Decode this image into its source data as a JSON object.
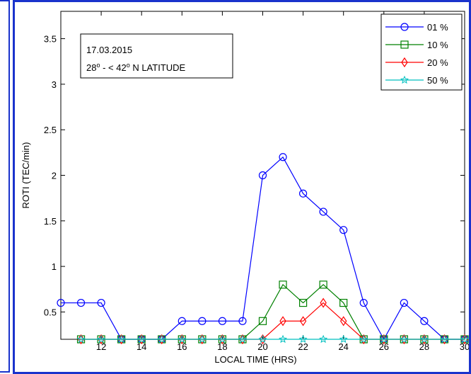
{
  "chart_data": {
    "type": "line",
    "xlabel": "LOCAL  TIME (HRS)",
    "ylabel": "ROTI (TEC/min)",
    "xlim": [
      10,
      30
    ],
    "ylim": [
      0.2,
      3.8
    ],
    "xticks": [
      12,
      14,
      16,
      18,
      20,
      22,
      24,
      26,
      28,
      30
    ],
    "yticks": [
      0.5,
      1,
      1.5,
      2,
      2.5,
      3,
      3.5
    ],
    "annotation": {
      "line1": "17.03.2015",
      "line2_prefix": "28",
      "line2_mid": " -  < 42",
      "line2_suffix": " N LATITUDE",
      "sup": "o"
    },
    "legend_position": "top-right",
    "series": [
      {
        "name": "01 %",
        "color": "#0000ff",
        "marker": "circle",
        "x": [
          10,
          11,
          12,
          13,
          14,
          15,
          16,
          17,
          18,
          19,
          20,
          21,
          22,
          23,
          24,
          25,
          26,
          27,
          28,
          29,
          30
        ],
        "y": [
          0.6,
          0.6,
          0.6,
          0.2,
          0.2,
          0.2,
          0.4,
          0.4,
          0.4,
          0.4,
          2.0,
          2.2,
          1.8,
          1.6,
          1.4,
          0.6,
          0.2,
          0.6,
          0.4,
          0.2,
          0.2
        ]
      },
      {
        "name": "10 %",
        "color": "#008000",
        "marker": "square",
        "x": [
          11,
          12,
          13,
          14,
          15,
          16,
          17,
          18,
          19,
          20,
          21,
          22,
          23,
          24,
          25,
          26,
          27,
          28,
          29,
          30
        ],
        "y": [
          0.2,
          0.2,
          0.2,
          0.2,
          0.2,
          0.2,
          0.2,
          0.2,
          0.2,
          0.4,
          0.8,
          0.6,
          0.8,
          0.6,
          0.2,
          0.2,
          0.2,
          0.2,
          0.2,
          0.2
        ]
      },
      {
        "name": "20 %",
        "color": "#ff0000",
        "marker": "diamond",
        "x": [
          11,
          12,
          13,
          14,
          15,
          16,
          17,
          18,
          19,
          20,
          21,
          22,
          23,
          24,
          25,
          26,
          27,
          28,
          29,
          30
        ],
        "y": [
          0.2,
          0.2,
          0.2,
          0.2,
          0.2,
          0.2,
          0.2,
          0.2,
          0.2,
          0.2,
          0.4,
          0.4,
          0.6,
          0.4,
          0.2,
          0.2,
          0.2,
          0.2,
          0.2,
          0.2
        ]
      },
      {
        "name": "50 %",
        "color": "#00bfbf",
        "marker": "star",
        "x": [
          11,
          12,
          13,
          14,
          15,
          16,
          17,
          18,
          19,
          20,
          21,
          22,
          23,
          24,
          25,
          26,
          27,
          28,
          29,
          30
        ],
        "y": [
          0.2,
          0.2,
          0.2,
          0.2,
          0.2,
          0.2,
          0.2,
          0.2,
          0.2,
          0.2,
          0.2,
          0.2,
          0.2,
          0.2,
          0.2,
          0.2,
          0.2,
          0.2,
          0.2,
          0.2
        ]
      }
    ]
  }
}
